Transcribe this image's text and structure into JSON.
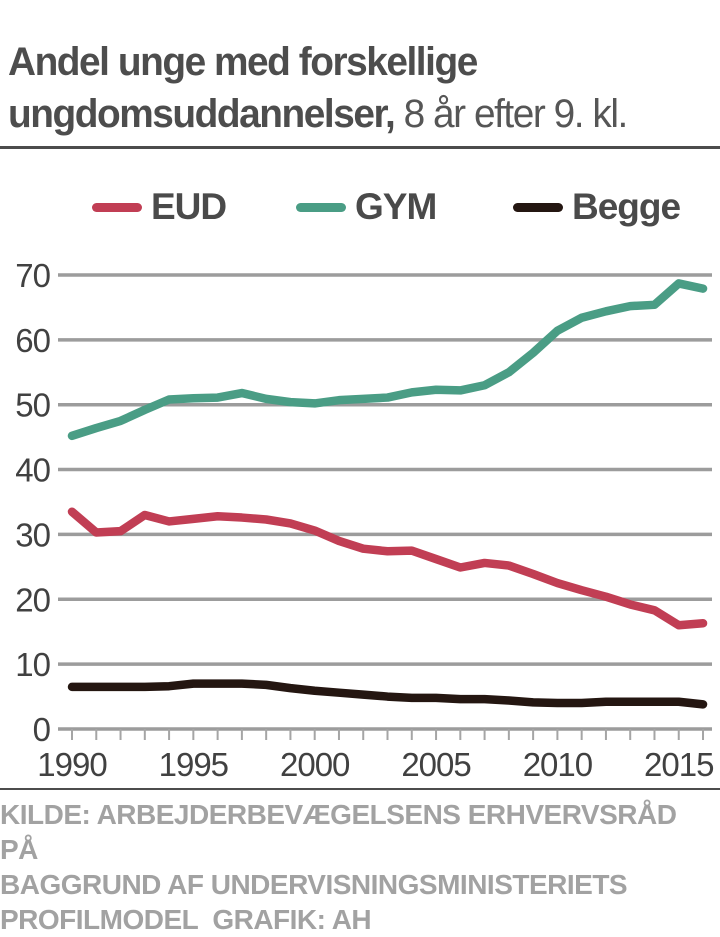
{
  "header": {
    "title_line1": "Andel unge med forskellige",
    "title_line2_bold": "ungdomsuddannelser,",
    "title_line2_light": " 8 år efter 9. kl."
  },
  "chart_data": {
    "type": "line",
    "title": "Andel unge med forskellige ungdomsuddannelser, 8 år efter 9. kl.",
    "x": [
      1990,
      1991,
      1992,
      1993,
      1994,
      1995,
      1996,
      1997,
      1998,
      1999,
      2000,
      2001,
      2002,
      2003,
      2004,
      2005,
      2006,
      2007,
      2008,
      2009,
      2010,
      2011,
      2012,
      2013,
      2014,
      2015,
      2016
    ],
    "series": [
      {
        "name": "EUD",
        "color": "#c13e54",
        "values": [
          33.5,
          30.3,
          30.5,
          33,
          32,
          32.4,
          32.8,
          32.6,
          32.3,
          31.7,
          30.6,
          29,
          27.8,
          27.4,
          27.5,
          26.2,
          24.9,
          25.6,
          25.2,
          23.9,
          22.5,
          21.4,
          20.4,
          19.2,
          18.3,
          16,
          16.3
        ]
      },
      {
        "name": "GYM",
        "color": "#4a9d85",
        "values": [
          45.2,
          46.4,
          47.5,
          49.2,
          50.8,
          51,
          51.1,
          51.8,
          50.9,
          50.4,
          50.2,
          50.7,
          50.9,
          51.1,
          51.9,
          52.3,
          52.2,
          53,
          55,
          58,
          61.4,
          63.4,
          64.4,
          65.2,
          65.4,
          68.7,
          67.9
        ]
      },
      {
        "name": "Begge",
        "color": "#241611",
        "values": [
          6.5,
          6.5,
          6.5,
          6.5,
          6.6,
          7,
          7,
          7,
          6.8,
          6.3,
          5.9,
          5.6,
          5.3,
          5,
          4.8,
          4.8,
          4.6,
          4.6,
          4.4,
          4.1,
          4,
          4,
          4.2,
          4.2,
          4.2,
          4.2,
          3.8
        ]
      }
    ],
    "ylim": [
      0,
      70
    ],
    "yticks": [
      0,
      10,
      20,
      30,
      40,
      50,
      60,
      70
    ],
    "xticks_labeled": [
      1990,
      1995,
      2000,
      2005,
      2010,
      2015
    ],
    "grid": "horizontal",
    "legend_position": "top"
  },
  "footer": {
    "lines": [
      "KILDE: ARBEJDERBEVÆGELSENS ERHVERVSRÅD PÅ",
      "BAGGRUND AF UNDERVISNINGSMINISTERIETS",
      "PROFILMODEL  GRAFIK: AH"
    ]
  },
  "colors": {
    "title_text": "#4d4d4d",
    "axis_text": "#414141",
    "gridline": "#9c9c9c",
    "tick": "#a5a5a5",
    "separator": "#4c4c4c",
    "source_text": "#a2a2a2",
    "background": "#ffffff"
  }
}
